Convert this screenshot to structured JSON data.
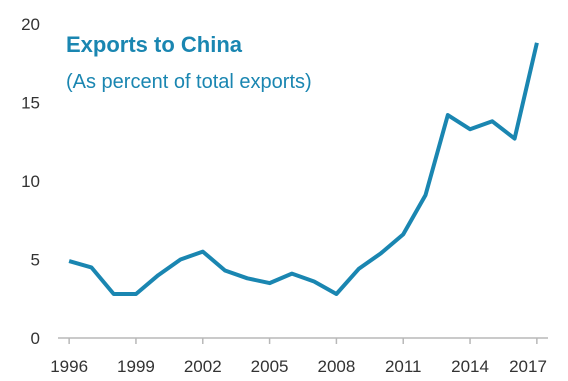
{
  "colors": {
    "line": "#1a86b1",
    "title": "#1a86b1",
    "axis": "#b8b8b8",
    "tick_text": "#333333"
  },
  "chart_data": {
    "type": "line",
    "title": "Exports to China",
    "subtitle": "(As percent of total exports)",
    "xlabel": "",
    "ylabel": "",
    "grid": false,
    "xlim": [
      1995.5,
      2017.5
    ],
    "ylim": [
      0,
      20
    ],
    "x_ticks": [
      "1996",
      "1999",
      "2002",
      "2005",
      "2008",
      "2011",
      "2014",
      "2017"
    ],
    "y_ticks": [
      "0",
      "5",
      "10",
      "15",
      "20"
    ],
    "series": [
      {
        "x": [
          1996,
          1997,
          1998,
          1999,
          2000,
          2001,
          2002,
          2003,
          2004,
          2005,
          2006,
          2007,
          2008,
          2009,
          2010,
          2011,
          2012,
          2013,
          2014,
          2015,
          2016,
          2017
        ],
        "values": [
          4.9,
          4.5,
          2.8,
          2.8,
          4.0,
          5.0,
          5.5,
          4.3,
          3.8,
          3.5,
          4.1,
          3.6,
          2.8,
          4.4,
          5.4,
          6.6,
          9.1,
          14.2,
          13.3,
          13.8,
          12.7,
          18.8
        ]
      }
    ]
  }
}
